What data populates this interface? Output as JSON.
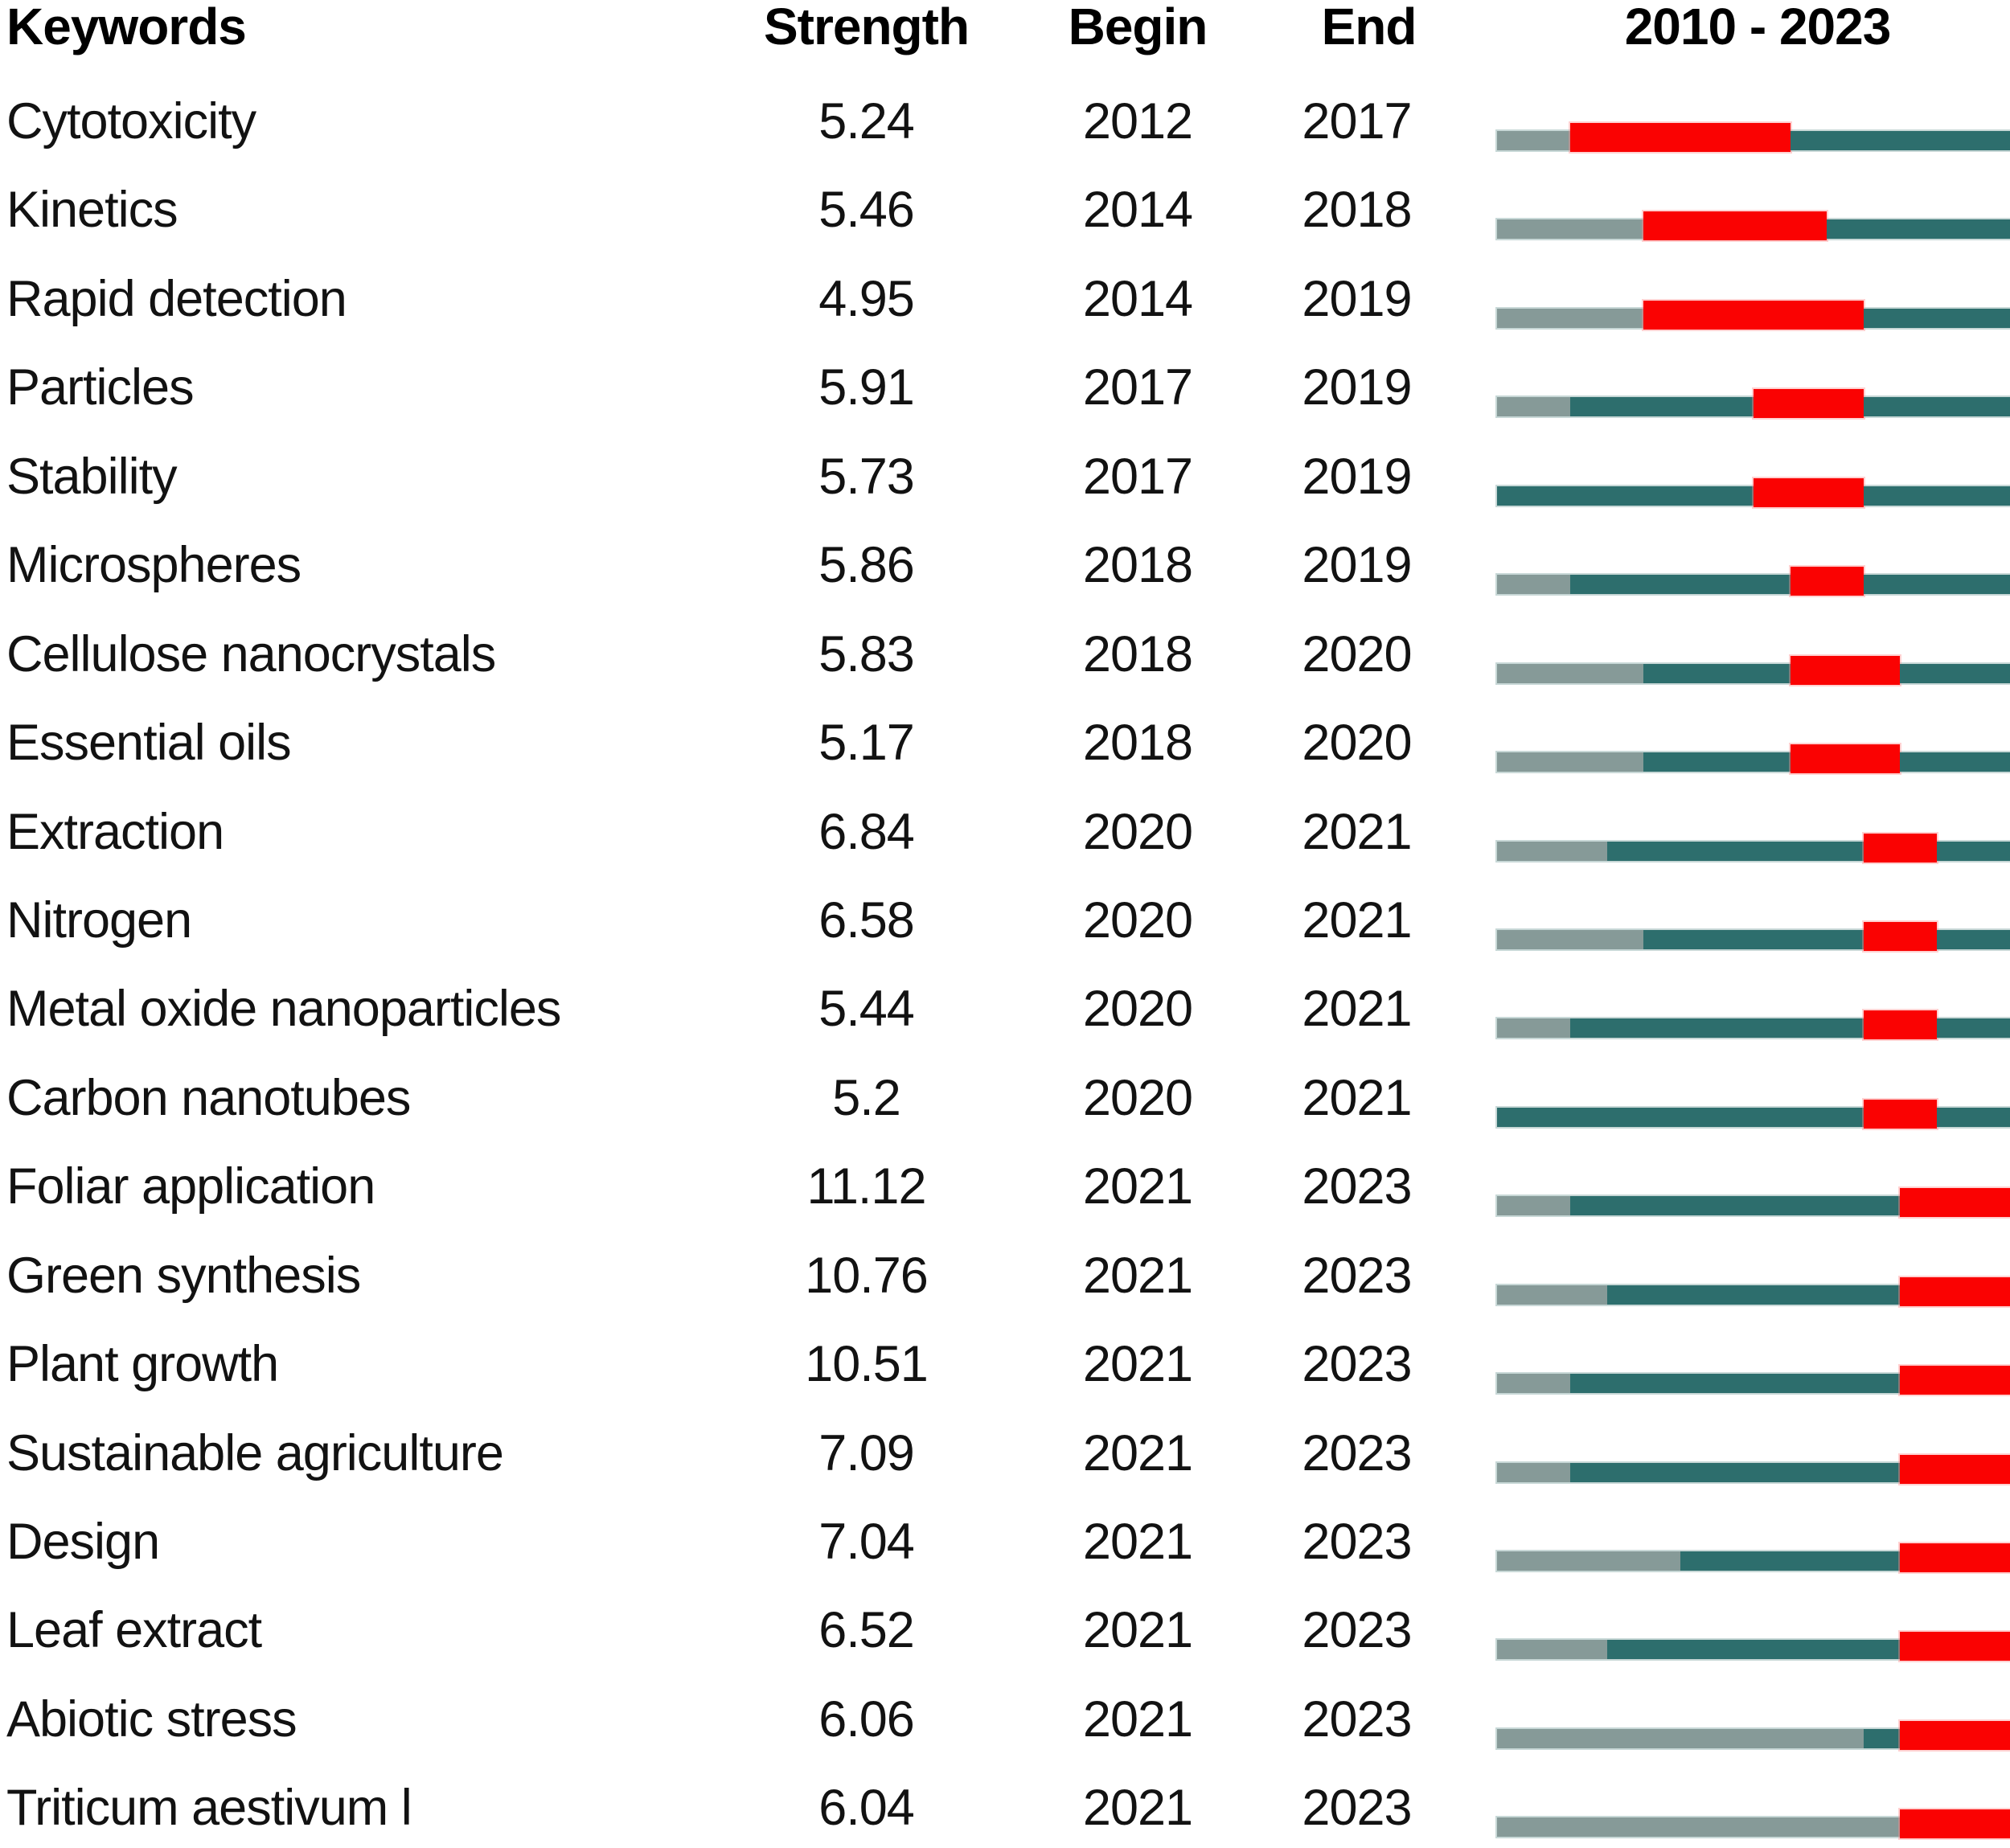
{
  "header": {
    "keywords": "Keywords",
    "strength": "Strength",
    "begin": "Begin",
    "end": "End",
    "period": "2010 - 2023"
  },
  "colors": {
    "burst": "#fa0202",
    "active": "#2d6e6d",
    "inactive": "#869a98",
    "halo": "#c8d8d7",
    "text": "#121212"
  },
  "chart_data": {
    "type": "table",
    "columns": [
      "Keywords",
      "Strength",
      "Begin",
      "End",
      "2010 - 2023"
    ],
    "timeline": {
      "first_year": 2010,
      "last_year": 2023,
      "total_years": 14
    },
    "legend_note": "segments: inactive = years before keyword appears, active = keyword active years, burst = citation burst period (Begin to End inclusive)",
    "rows": [
      {
        "keyword": "Cytotoxicity",
        "strength": "5.24",
        "begin": 2012,
        "end": 2017,
        "segments": [
          {
            "state": "inactive",
            "years": 2
          },
          {
            "state": "burst",
            "years": 6
          },
          {
            "state": "active",
            "years": 6
          }
        ]
      },
      {
        "keyword": "Kinetics",
        "strength": "5.46",
        "begin": 2014,
        "end": 2018,
        "segments": [
          {
            "state": "inactive",
            "years": 4
          },
          {
            "state": "burst",
            "years": 5
          },
          {
            "state": "active",
            "years": 5
          }
        ]
      },
      {
        "keyword": "Rapid detection",
        "strength": "4.95",
        "begin": 2014,
        "end": 2019,
        "segments": [
          {
            "state": "inactive",
            "years": 4
          },
          {
            "state": "burst",
            "years": 6
          },
          {
            "state": "active",
            "years": 4
          }
        ]
      },
      {
        "keyword": "Particles",
        "strength": "5.91",
        "begin": 2017,
        "end": 2019,
        "segments": [
          {
            "state": "inactive",
            "years": 2
          },
          {
            "state": "active",
            "years": 5
          },
          {
            "state": "burst",
            "years": 3
          },
          {
            "state": "active",
            "years": 4
          }
        ]
      },
      {
        "keyword": "Stability",
        "strength": "5.73",
        "begin": 2017,
        "end": 2019,
        "segments": [
          {
            "state": "active",
            "years": 7
          },
          {
            "state": "burst",
            "years": 3
          },
          {
            "state": "active",
            "years": 4
          }
        ]
      },
      {
        "keyword": "Microspheres",
        "strength": "5.86",
        "begin": 2018,
        "end": 2019,
        "segments": [
          {
            "state": "inactive",
            "years": 2
          },
          {
            "state": "active",
            "years": 6
          },
          {
            "state": "burst",
            "years": 2
          },
          {
            "state": "active",
            "years": 4
          }
        ]
      },
      {
        "keyword": "Cellulose nanocrystals",
        "strength": "5.83",
        "begin": 2018,
        "end": 2020,
        "segments": [
          {
            "state": "inactive",
            "years": 4
          },
          {
            "state": "active",
            "years": 4
          },
          {
            "state": "burst",
            "years": 3
          },
          {
            "state": "active",
            "years": 3
          }
        ]
      },
      {
        "keyword": "Essential oils",
        "strength": "5.17",
        "begin": 2018,
        "end": 2020,
        "segments": [
          {
            "state": "inactive",
            "years": 4
          },
          {
            "state": "active",
            "years": 4
          },
          {
            "state": "burst",
            "years": 3
          },
          {
            "state": "active",
            "years": 3
          }
        ]
      },
      {
        "keyword": "Extraction",
        "strength": "6.84",
        "begin": 2020,
        "end": 2021,
        "segments": [
          {
            "state": "inactive",
            "years": 3
          },
          {
            "state": "active",
            "years": 7
          },
          {
            "state": "burst",
            "years": 2
          },
          {
            "state": "active",
            "years": 2
          }
        ]
      },
      {
        "keyword": "Nitrogen",
        "strength": "6.58",
        "begin": 2020,
        "end": 2021,
        "segments": [
          {
            "state": "inactive",
            "years": 4
          },
          {
            "state": "active",
            "years": 6
          },
          {
            "state": "burst",
            "years": 2
          },
          {
            "state": "active",
            "years": 2
          }
        ]
      },
      {
        "keyword": "Metal oxide nanoparticles",
        "strength": "5.44",
        "begin": 2020,
        "end": 2021,
        "segments": [
          {
            "state": "inactive",
            "years": 2
          },
          {
            "state": "active",
            "years": 8
          },
          {
            "state": "burst",
            "years": 2
          },
          {
            "state": "active",
            "years": 2
          }
        ]
      },
      {
        "keyword": "Carbon nanotubes",
        "strength": "5.2",
        "begin": 2020,
        "end": 2021,
        "segments": [
          {
            "state": "active",
            "years": 10
          },
          {
            "state": "burst",
            "years": 2
          },
          {
            "state": "active",
            "years": 2
          }
        ]
      },
      {
        "keyword": "Foliar application",
        "strength": "11.12",
        "begin": 2021,
        "end": 2023,
        "segments": [
          {
            "state": "inactive",
            "years": 2
          },
          {
            "state": "active",
            "years": 9
          },
          {
            "state": "burst",
            "years": 3
          }
        ]
      },
      {
        "keyword": "Green synthesis",
        "strength": "10.76",
        "begin": 2021,
        "end": 2023,
        "segments": [
          {
            "state": "inactive",
            "years": 3
          },
          {
            "state": "active",
            "years": 8
          },
          {
            "state": "burst",
            "years": 3
          }
        ]
      },
      {
        "keyword": "Plant growth",
        "strength": "10.51",
        "begin": 2021,
        "end": 2023,
        "segments": [
          {
            "state": "inactive",
            "years": 2
          },
          {
            "state": "active",
            "years": 9
          },
          {
            "state": "burst",
            "years": 3
          }
        ]
      },
      {
        "keyword": "Sustainable agriculture",
        "strength": "7.09",
        "begin": 2021,
        "end": 2023,
        "segments": [
          {
            "state": "inactive",
            "years": 2
          },
          {
            "state": "active",
            "years": 9
          },
          {
            "state": "burst",
            "years": 3
          }
        ]
      },
      {
        "keyword": "Design",
        "strength": "7.04",
        "begin": 2021,
        "end": 2023,
        "segments": [
          {
            "state": "inactive",
            "years": 5
          },
          {
            "state": "active",
            "years": 6
          },
          {
            "state": "burst",
            "years": 3
          }
        ]
      },
      {
        "keyword": "Leaf extract",
        "strength": "6.52",
        "begin": 2021,
        "end": 2023,
        "segments": [
          {
            "state": "inactive",
            "years": 3
          },
          {
            "state": "active",
            "years": 8
          },
          {
            "state": "burst",
            "years": 3
          }
        ]
      },
      {
        "keyword": "Abiotic stress",
        "strength": "6.06",
        "begin": 2021,
        "end": 2023,
        "segments": [
          {
            "state": "inactive",
            "years": 10
          },
          {
            "state": "active",
            "years": 1
          },
          {
            "state": "burst",
            "years": 3
          }
        ]
      },
      {
        "keyword": "Triticum aestivum l",
        "strength": "6.04",
        "begin": 2021,
        "end": 2023,
        "segments": [
          {
            "state": "inactive",
            "years": 11
          },
          {
            "state": "burst",
            "years": 3
          }
        ]
      }
    ]
  }
}
